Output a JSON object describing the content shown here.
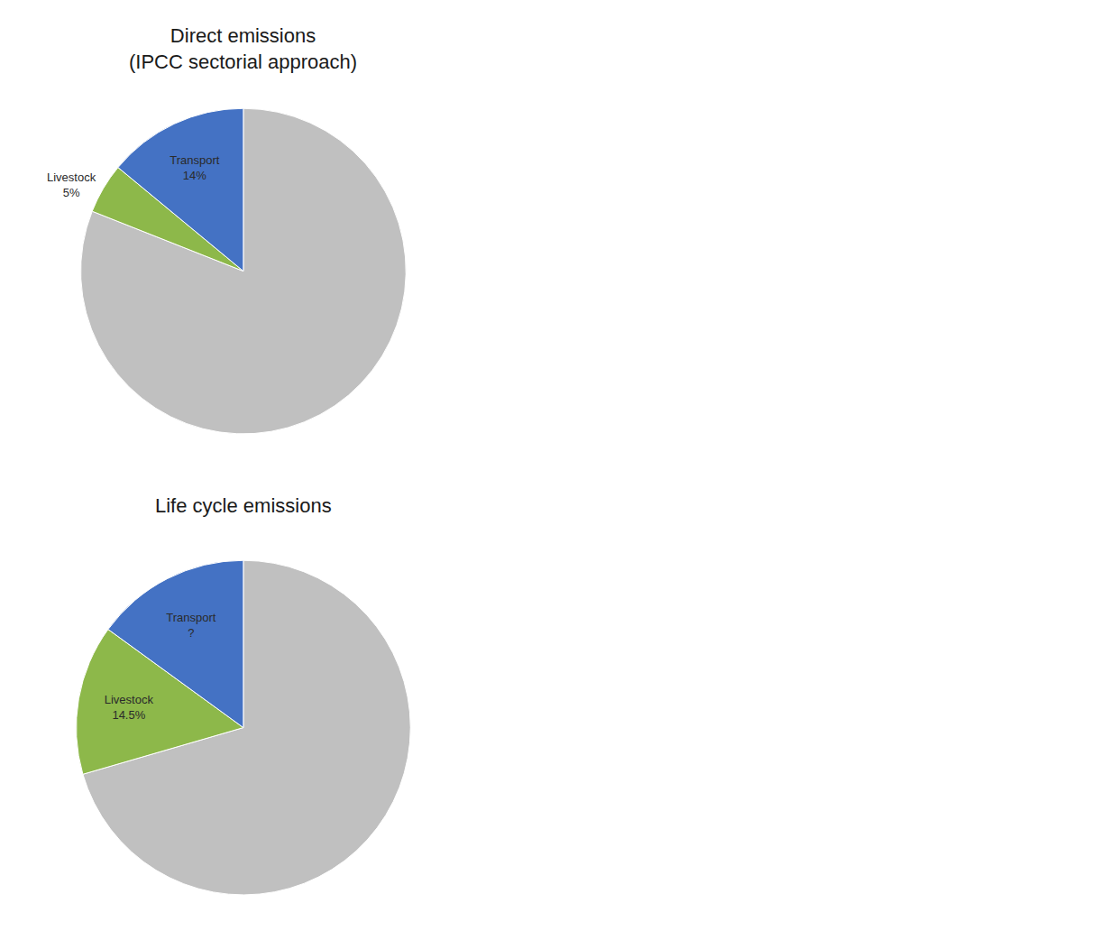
{
  "chart_data": [
    {
      "type": "pie",
      "title": "Direct emissions\n(IPCC sectorial approach)",
      "categories": [
        null,
        "Livestock",
        "Transport"
      ],
      "values": [
        81,
        5,
        14
      ],
      "value_labels": [
        null,
        "5%",
        "14%"
      ],
      "colors": [
        "#C0C0C0",
        "#8DB84A",
        "#4472C4"
      ],
      "data_labels": true
    },
    {
      "type": "pie",
      "title": "Life cycle emissions",
      "categories": [
        null,
        "Livestock",
        "Transport"
      ],
      "values": [
        70.5,
        14.5,
        15
      ],
      "value_labels": [
        null,
        "14.5%",
        "?"
      ],
      "colors": [
        "#C0C0C0",
        "#8DB84A",
        "#4472C4"
      ],
      "data_labels": true
    }
  ]
}
